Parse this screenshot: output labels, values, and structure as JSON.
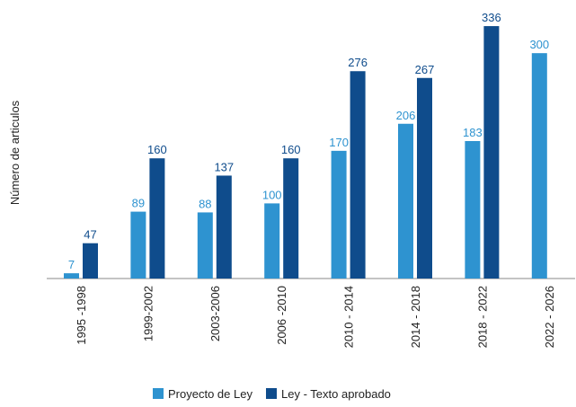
{
  "chart_data": {
    "type": "bar",
    "ylabel": "Número de articulos",
    "categories": [
      "1995 -1998",
      "1999-2002",
      "2003-2006",
      "2006 -2010",
      "2010 - 2014",
      "2014 - 2018",
      "2018 - 2022",
      "2022 - 2026"
    ],
    "series": [
      {
        "name": "Proyecto de Ley",
        "color": "#2e93d0",
        "values": [
          7,
          89,
          88,
          100,
          170,
          206,
          183,
          300
        ]
      },
      {
        "name": "Ley - Texto aprobado",
        "color": "#0f4c8c",
        "values": [
          47,
          160,
          137,
          160,
          276,
          267,
          336,
          null
        ]
      }
    ],
    "ylim": [
      0,
      360
    ],
    "legend": "bottom",
    "grid": false
  }
}
